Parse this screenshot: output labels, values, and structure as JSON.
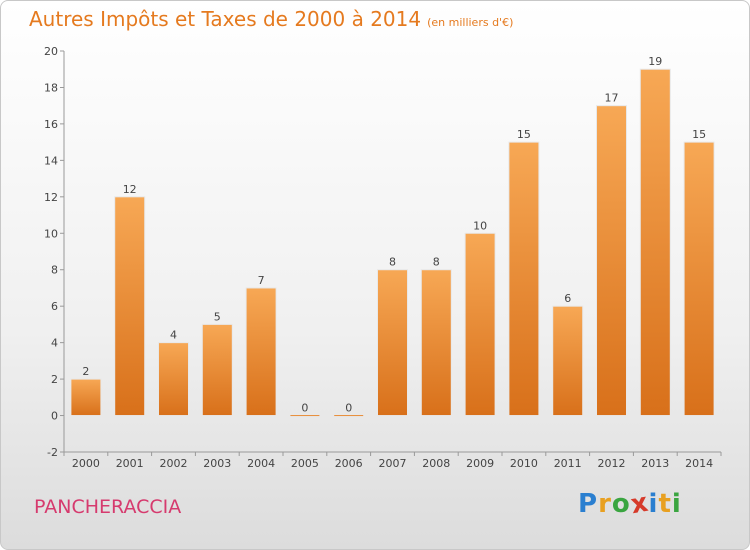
{
  "title": "Autres Impôts et Taxes de 2000 à 2014",
  "subtitle": "(en milliers d'€)",
  "commune": "PANCHERACCIA",
  "logo": {
    "text": "Proxiti",
    "letters": [
      {
        "ch": "P",
        "color": "#2a7fd0"
      },
      {
        "ch": "r",
        "color": "#e8a020"
      },
      {
        "ch": "o",
        "color": "#3aa540"
      },
      {
        "ch": "x",
        "color": "#d63a2a"
      },
      {
        "ch": "i",
        "color": "#2a7fd0"
      },
      {
        "ch": "t",
        "color": "#e8a020"
      },
      {
        "ch": "i",
        "color": "#3aa540"
      }
    ]
  },
  "colors": {
    "title": "#e57a1f",
    "commune": "#d63a6e",
    "bar_light": "#f7a855",
    "bar_dark": "#d8701a"
  },
  "chart_data": {
    "type": "bar",
    "categories": [
      "2000",
      "2001",
      "2002",
      "2003",
      "2004",
      "2005",
      "2006",
      "2007",
      "2008",
      "2009",
      "2010",
      "2011",
      "2012",
      "2013",
      "2014"
    ],
    "values": [
      2,
      12,
      4,
      5,
      7,
      0,
      0,
      8,
      8,
      10,
      15,
      6,
      17,
      19,
      15
    ],
    "ylim": [
      -2,
      20
    ],
    "yticks": [
      -2,
      0,
      2,
      4,
      6,
      8,
      10,
      12,
      14,
      16,
      18,
      20
    ],
    "grid": false,
    "xlabel": "",
    "ylabel": ""
  }
}
